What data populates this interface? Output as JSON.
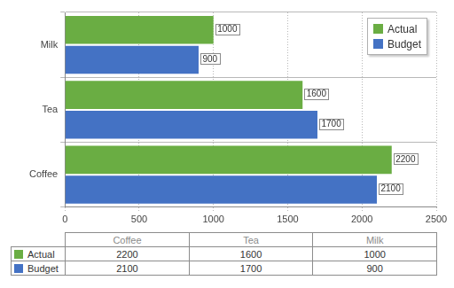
{
  "chart_data": {
    "type": "bar",
    "orientation": "horizontal",
    "categories": [
      "Coffee",
      "Tea",
      "Milk"
    ],
    "series": [
      {
        "name": "Actual",
        "color": "#6aad43",
        "values": [
          2200,
          1600,
          1000
        ]
      },
      {
        "name": "Budget",
        "color": "#4472c4",
        "values": [
          2100,
          1700,
          900
        ]
      }
    ],
    "xlim": [
      0,
      2500
    ],
    "xticks": [
      0,
      500,
      1000,
      1500,
      2000,
      2500
    ],
    "grid": true,
    "legend": "upper right",
    "data_labels": true
  }
}
